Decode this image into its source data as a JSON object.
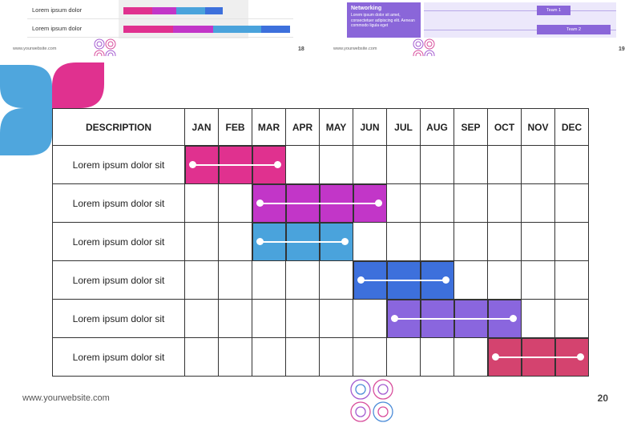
{
  "preview_left": {
    "rows": [
      {
        "label": "Lorem ipsum dolor"
      },
      {
        "label": "Lorem ipsum dolor"
      }
    ],
    "website": "www.yourwebsite.com",
    "page_number": "18"
  },
  "preview_right": {
    "box_title": "Networking",
    "box_text": "Lorem ipsum dolor sit amet, consectetuer adipiscing elit. Aenean commodo ligula eget",
    "teams": [
      "Team 1",
      "Team 2"
    ],
    "website": "www.yourwebsite.com",
    "page_number": "19"
  },
  "gantt": {
    "headers": [
      "DESCRIPTION",
      "JAN",
      "FEB",
      "MAR",
      "APR",
      "MAY",
      "JUN",
      "JUL",
      "AUG",
      "SEP",
      "OCT",
      "NOV",
      "DEC"
    ],
    "rows": [
      {
        "label": "Lorem ipsum dolor sit",
        "start_month": 1,
        "end_month": 3,
        "color": "#e0318f"
      },
      {
        "label": "Lorem ipsum dolor sit",
        "start_month": 3,
        "end_month": 6,
        "color": "#c236c8"
      },
      {
        "label": "Lorem ipsum dolor sit",
        "start_month": 3,
        "end_month": 5,
        "color": "#4aa3dc"
      },
      {
        "label": "Lorem ipsum dolor sit",
        "start_month": 6,
        "end_month": 8,
        "color": "#3d70dc"
      },
      {
        "label": "Lorem ipsum dolor sit",
        "start_month": 7,
        "end_month": 10,
        "color": "#8a66de"
      },
      {
        "label": "Lorem ipsum dolor sit",
        "start_month": 10,
        "end_month": 12,
        "color": "#d4436f"
      }
    ]
  },
  "footer": {
    "website": "www.yourwebsite.com",
    "page_number": "20"
  },
  "colors": {
    "leaf_blue": "#4fa6dd",
    "leaf_pink": "#e0318f",
    "ring_purple": "#a35ad0",
    "ring_pink": "#d84d9c",
    "ring_blue": "#4a8bd8"
  },
  "icons": [
    "leaf-logo-icon",
    "rings-logo-icon"
  ]
}
